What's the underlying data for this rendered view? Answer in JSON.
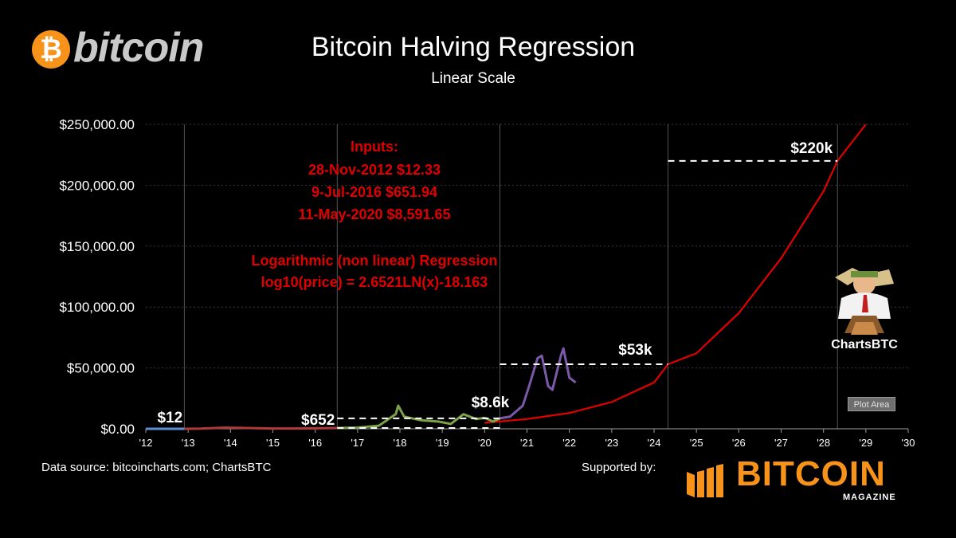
{
  "logo": {
    "text": "bitcoin",
    "symbol": "₿"
  },
  "footer": {
    "source": "Data source: bitcoincharts.com; ChartsBTC",
    "supported_by": "Supported by:",
    "sponsor_name": "BITCOIN",
    "sponsor_sub": "MAGAZINE"
  },
  "watermark": {
    "label": "ChartsBTC"
  },
  "plot_area_tag": "Plot Area",
  "colors": {
    "background": "#000000",
    "regression": "#e00000",
    "annotation_text": "#e00000",
    "segment_2012": "#5b8ed6",
    "segment_2012_2016": "#b03a3a",
    "segment_2016_2020": "#7da24a",
    "segment_2020_2022": "#7a5aa8",
    "grid": "#3a3a3a",
    "brand_orange": "#f7931a"
  },
  "chart_data": {
    "type": "line",
    "title": "Bitcoin Halving Regression",
    "subtitle": "Linear Scale",
    "xlabel": "",
    "ylabel": "",
    "x_range": [
      2012,
      2030
    ],
    "ylim": [
      0,
      250000
    ],
    "x_tick_labels": [
      "'12",
      "'13",
      "'14",
      "'15",
      "'16",
      "'17",
      "'18",
      "'19",
      "'20",
      "'21",
      "'22",
      "'23",
      "'24",
      "'25",
      "'26",
      "'27",
      "'28",
      "'29",
      "'30"
    ],
    "y_tick_values": [
      0,
      50000,
      100000,
      150000,
      200000,
      250000
    ],
    "y_tick_labels": [
      "$0.00",
      "$50,000.00",
      "$100,000.00",
      "$150,000.00",
      "$200,000.00",
      "$250,000.00"
    ],
    "grid": "horizontal dotted",
    "halving_markers": [
      2012.91,
      2016.52,
      2020.36,
      2024.33,
      2028.33
    ],
    "regression": {
      "name": "Logarithmic (non linear) Regression",
      "equation": "log10(price) = 2.6521LN(x)-18.163",
      "x": [
        2020.0,
        2021.0,
        2022.0,
        2023.0,
        2024.0,
        2024.33,
        2025.0,
        2026.0,
        2027.0,
        2028.0,
        2028.33,
        2029.0
      ],
      "y": [
        5000,
        8000,
        13000,
        22000,
        38000,
        53000,
        62000,
        95000,
        140000,
        195000,
        220000,
        250000
      ]
    },
    "series": [
      {
        "period": "2012-2013",
        "x": [
          2012.0,
          2012.3,
          2012.6,
          2012.91
        ],
        "y": [
          5,
          6,
          11,
          12
        ]
      },
      {
        "period": "2012-2016",
        "x": [
          2012.91,
          2013.3,
          2013.9,
          2014.5,
          2015.0,
          2015.5,
          2016.0,
          2016.52
        ],
        "y": [
          12,
          200,
          1000,
          600,
          250,
          270,
          400,
          652
        ]
      },
      {
        "period": "2016-2020",
        "x": [
          2016.52,
          2017.0,
          2017.5,
          2017.9,
          2017.96,
          2018.1,
          2018.5,
          2018.9,
          2019.2,
          2019.5,
          2019.8,
          2020.0,
          2020.2,
          2020.36
        ],
        "y": [
          652,
          1000,
          2500,
          12000,
          19000,
          10000,
          7000,
          6000,
          4000,
          12000,
          8000,
          9000,
          6000,
          8600
        ]
      },
      {
        "period": "2020-2022",
        "x": [
          2020.36,
          2020.6,
          2020.9,
          2021.05,
          2021.25,
          2021.35,
          2021.5,
          2021.6,
          2021.8,
          2021.86,
          2022.0,
          2022.15
        ],
        "y": [
          8600,
          10000,
          19000,
          35000,
          58000,
          60000,
          35000,
          32000,
          60000,
          66000,
          42000,
          38000
        ]
      }
    ],
    "price_labels": [
      {
        "text": "$12",
        "x": 2012.91,
        "y": 12
      },
      {
        "text": "$652",
        "x": 2016.52,
        "y": 652
      },
      {
        "text": "$8.6k",
        "x": 2020.36,
        "y": 8600
      },
      {
        "text": "$53k",
        "x": 2024.33,
        "y": 53000
      },
      {
        "text": "$220k",
        "x": 2028.33,
        "y": 220000
      }
    ],
    "annotations": {
      "inputs_title": "Inputs:",
      "inputs": [
        "28-Nov-2012 $12.33",
        "9-Jul-2016 $651.94",
        "11-May-2020 $8,591.65"
      ]
    }
  }
}
